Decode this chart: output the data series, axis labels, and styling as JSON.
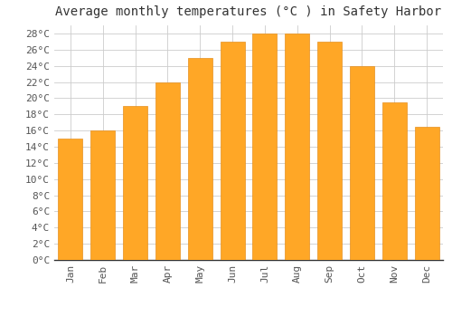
{
  "title": "Average monthly temperatures (°C ) in Safety Harbor",
  "months": [
    "Jan",
    "Feb",
    "Mar",
    "Apr",
    "May",
    "Jun",
    "Jul",
    "Aug",
    "Sep",
    "Oct",
    "Nov",
    "Dec"
  ],
  "temperatures": [
    15,
    16,
    19,
    22,
    25,
    27,
    28,
    28,
    27,
    24,
    19.5,
    16.5
  ],
  "bar_color": "#FFA726",
  "bar_edge_color": "#E69020",
  "background_color": "#FFFFFF",
  "grid_color": "#CCCCCC",
  "ylim": [
    0,
    29
  ],
  "yticks": [
    0,
    2,
    4,
    6,
    8,
    10,
    12,
    14,
    16,
    18,
    20,
    22,
    24,
    26,
    28
  ],
  "title_fontsize": 10,
  "tick_fontsize": 8,
  "font_family": "monospace"
}
